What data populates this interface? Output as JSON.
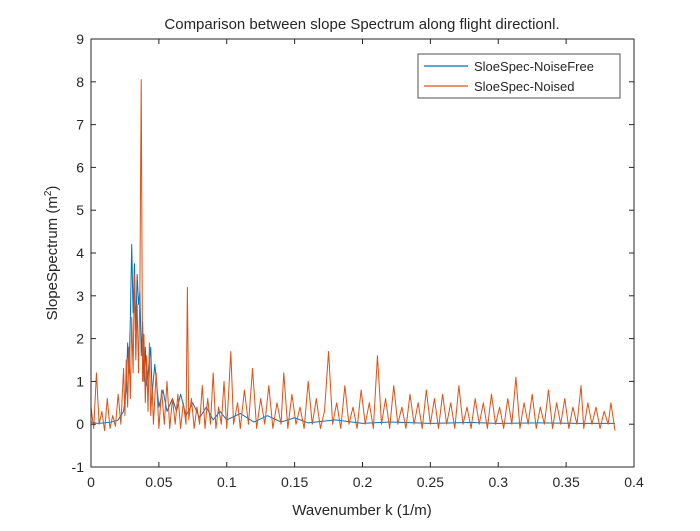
{
  "chart_data": {
    "type": "line",
    "title": "Comparison between slope Spectrum along flight directionl.",
    "xlabel": "Wavenumber k (1/m)",
    "ylabel_main": "SlopeSpectrum (m",
    "ylabel_sup": "2",
    "ylabel_close": ")",
    "xlim": [
      0,
      0.4
    ],
    "ylim": [
      -1,
      9
    ],
    "xticks": [
      0,
      0.05,
      0.1,
      0.15,
      0.2,
      0.25,
      0.3,
      0.35,
      0.4
    ],
    "xtick_labels": [
      "0",
      "0.05",
      "0.1",
      "0.15",
      "0.2",
      "0.25",
      "0.3",
      "0.35",
      "0.4"
    ],
    "yticks": [
      -1,
      0,
      1,
      2,
      3,
      4,
      5,
      6,
      7,
      8,
      9
    ],
    "ytick_labels": [
      "-1",
      "0",
      "1",
      "2",
      "3",
      "4",
      "5",
      "6",
      "7",
      "8",
      "9"
    ],
    "grid": false,
    "legend_position": "top-right",
    "series": [
      {
        "name": "SloeSpec-NoiseFree",
        "color": "#0072BD",
        "points": [
          [
            0.0,
            0.05
          ],
          [
            0.005,
            0.02
          ],
          [
            0.01,
            0.03
          ],
          [
            0.015,
            0.05
          ],
          [
            0.02,
            0.1
          ],
          [
            0.024,
            0.3
          ],
          [
            0.026,
            0.8
          ],
          [
            0.027,
            1.9
          ],
          [
            0.028,
            1.2
          ],
          [
            0.029,
            2.5
          ],
          [
            0.03,
            4.2
          ],
          [
            0.031,
            2.6
          ],
          [
            0.032,
            3.75
          ],
          [
            0.033,
            2.2
          ],
          [
            0.034,
            3.5
          ],
          [
            0.035,
            2.8
          ],
          [
            0.036,
            3.1
          ],
          [
            0.037,
            1.6
          ],
          [
            0.038,
            2.4
          ],
          [
            0.039,
            1.0
          ],
          [
            0.04,
            1.8
          ],
          [
            0.041,
            0.9
          ],
          [
            0.042,
            1.2
          ],
          [
            0.044,
            1.8
          ],
          [
            0.045,
            0.7
          ],
          [
            0.047,
            1.4
          ],
          [
            0.05,
            0.4
          ],
          [
            0.053,
            0.8
          ],
          [
            0.056,
            0.3
          ],
          [
            0.06,
            0.6
          ],
          [
            0.063,
            0.3
          ],
          [
            0.066,
            0.7
          ],
          [
            0.07,
            0.2
          ],
          [
            0.075,
            0.5
          ],
          [
            0.08,
            0.15
          ],
          [
            0.085,
            0.4
          ],
          [
            0.09,
            0.1
          ],
          [
            0.095,
            0.3
          ],
          [
            0.1,
            0.1
          ],
          [
            0.11,
            0.25
          ],
          [
            0.12,
            0.05
          ],
          [
            0.13,
            0.2
          ],
          [
            0.14,
            0.05
          ],
          [
            0.15,
            0.15
          ],
          [
            0.16,
            0.03
          ],
          [
            0.18,
            0.1
          ],
          [
            0.2,
            0.02
          ],
          [
            0.22,
            0.05
          ],
          [
            0.25,
            0.02
          ],
          [
            0.28,
            0.04
          ],
          [
            0.3,
            0.02
          ],
          [
            0.33,
            0.03
          ],
          [
            0.36,
            0.02
          ],
          [
            0.386,
            0.02
          ]
        ]
      },
      {
        "name": "SloeSpec-Noised",
        "color": "#D95319",
        "points": [
          [
            0.0,
            0.4
          ],
          [
            0.002,
            -0.1
          ],
          [
            0.004,
            1.2
          ],
          [
            0.006,
            0.0
          ],
          [
            0.008,
            0.3
          ],
          [
            0.01,
            -0.15
          ],
          [
            0.012,
            0.6
          ],
          [
            0.014,
            -0.1
          ],
          [
            0.016,
            0.2
          ],
          [
            0.018,
            -0.05
          ],
          [
            0.02,
            0.7
          ],
          [
            0.022,
            0.0
          ],
          [
            0.024,
            1.3
          ],
          [
            0.025,
            0.2
          ],
          [
            0.026,
            1.5
          ],
          [
            0.027,
            0.4
          ],
          [
            0.028,
            1.8
          ],
          [
            0.029,
            0.6
          ],
          [
            0.03,
            2.5
          ],
          [
            0.031,
            1.2
          ],
          [
            0.032,
            3.5
          ],
          [
            0.033,
            1.5
          ],
          [
            0.034,
            2.8
          ],
          [
            0.035,
            1.2
          ],
          [
            0.036,
            3.1
          ],
          [
            0.037,
            8.05
          ],
          [
            0.038,
            1.0
          ],
          [
            0.039,
            2.1
          ],
          [
            0.04,
            0.5
          ],
          [
            0.041,
            1.6
          ],
          [
            0.042,
            0.3
          ],
          [
            0.043,
            1.9
          ],
          [
            0.044,
            0.2
          ],
          [
            0.045,
            0.9
          ],
          [
            0.046,
            0.0
          ],
          [
            0.048,
            1.2
          ],
          [
            0.05,
            -0.1
          ],
          [
            0.052,
            0.8
          ],
          [
            0.054,
            0.0
          ],
          [
            0.056,
            1.0
          ],
          [
            0.058,
            -0.1
          ],
          [
            0.06,
            0.6
          ],
          [
            0.062,
            0.0
          ],
          [
            0.064,
            0.7
          ],
          [
            0.066,
            -0.1
          ],
          [
            0.068,
            0.5
          ],
          [
            0.07,
            0.0
          ],
          [
            0.071,
            3.2
          ],
          [
            0.072,
            0.1
          ],
          [
            0.074,
            0.6
          ],
          [
            0.076,
            -0.1
          ],
          [
            0.078,
            0.4
          ],
          [
            0.08,
            0.0
          ],
          [
            0.082,
            0.9
          ],
          [
            0.084,
            -0.1
          ],
          [
            0.086,
            0.6
          ],
          [
            0.088,
            0.0
          ],
          [
            0.09,
            1.2
          ],
          [
            0.092,
            -0.1
          ],
          [
            0.094,
            0.4
          ],
          [
            0.096,
            0.0
          ],
          [
            0.098,
            1.0
          ],
          [
            0.1,
            -0.1
          ],
          [
            0.103,
            1.7
          ],
          [
            0.105,
            0.0
          ],
          [
            0.108,
            0.5
          ],
          [
            0.11,
            -0.1
          ],
          [
            0.113,
            0.8
          ],
          [
            0.116,
            0.0
          ],
          [
            0.119,
            1.3
          ],
          [
            0.122,
            -0.1
          ],
          [
            0.125,
            0.6
          ],
          [
            0.128,
            0.0
          ],
          [
            0.131,
            0.9
          ],
          [
            0.134,
            -0.1
          ],
          [
            0.137,
            0.5
          ],
          [
            0.14,
            0.0
          ],
          [
            0.142,
            1.2
          ],
          [
            0.145,
            -0.1
          ],
          [
            0.148,
            0.7
          ],
          [
            0.151,
            0.0
          ],
          [
            0.154,
            0.4
          ],
          [
            0.157,
            -0.1
          ],
          [
            0.16,
            1.0
          ],
          [
            0.163,
            0.0
          ],
          [
            0.166,
            0.6
          ],
          [
            0.169,
            -0.1
          ],
          [
            0.172,
            0.3
          ],
          [
            0.175,
            1.7
          ],
          [
            0.178,
            0.0
          ],
          [
            0.181,
            0.5
          ],
          [
            0.184,
            -0.1
          ],
          [
            0.187,
            0.9
          ],
          [
            0.19,
            0.0
          ],
          [
            0.193,
            0.4
          ],
          [
            0.196,
            -0.1
          ],
          [
            0.199,
            0.8
          ],
          [
            0.202,
            0.0
          ],
          [
            0.205,
            0.5
          ],
          [
            0.208,
            -0.1
          ],
          [
            0.211,
            1.6
          ],
          [
            0.214,
            0.0
          ],
          [
            0.217,
            0.6
          ],
          [
            0.22,
            -0.1
          ],
          [
            0.223,
            0.9
          ],
          [
            0.226,
            0.0
          ],
          [
            0.229,
            0.4
          ],
          [
            0.232,
            -0.1
          ],
          [
            0.235,
            0.7
          ],
          [
            0.238,
            0.0
          ],
          [
            0.241,
            0.5
          ],
          [
            0.244,
            -0.1
          ],
          [
            0.247,
            0.8
          ],
          [
            0.25,
            0.0
          ],
          [
            0.253,
            0.6
          ],
          [
            0.256,
            -0.1
          ],
          [
            0.259,
            0.7
          ],
          [
            0.262,
            0.0
          ],
          [
            0.265,
            0.5
          ],
          [
            0.268,
            -0.1
          ],
          [
            0.271,
            0.9
          ],
          [
            0.274,
            0.0
          ],
          [
            0.277,
            0.4
          ],
          [
            0.28,
            -0.1
          ],
          [
            0.283,
            0.6
          ],
          [
            0.286,
            0.0
          ],
          [
            0.289,
            0.5
          ],
          [
            0.292,
            -0.1
          ],
          [
            0.295,
            0.7
          ],
          [
            0.298,
            0.0
          ],
          [
            0.301,
            0.4
          ],
          [
            0.304,
            -0.1
          ],
          [
            0.307,
            0.6
          ],
          [
            0.31,
            0.0
          ],
          [
            0.313,
            1.1
          ],
          [
            0.316,
            -0.1
          ],
          [
            0.319,
            0.5
          ],
          [
            0.322,
            0.0
          ],
          [
            0.325,
            0.7
          ],
          [
            0.328,
            -0.1
          ],
          [
            0.331,
            0.4
          ],
          [
            0.334,
            0.0
          ],
          [
            0.337,
            0.8
          ],
          [
            0.34,
            -0.1
          ],
          [
            0.343,
            0.5
          ],
          [
            0.346,
            0.0
          ],
          [
            0.349,
            0.6
          ],
          [
            0.352,
            -0.1
          ],
          [
            0.355,
            0.4
          ],
          [
            0.358,
            0.0
          ],
          [
            0.361,
            0.9
          ],
          [
            0.363,
            -0.1
          ],
          [
            0.366,
            0.5
          ],
          [
            0.369,
            0.0
          ],
          [
            0.372,
            0.4
          ],
          [
            0.375,
            -0.1
          ],
          [
            0.378,
            0.3
          ],
          [
            0.381,
            0.0
          ],
          [
            0.383,
            0.5
          ],
          [
            0.386,
            -0.15
          ]
        ]
      }
    ]
  }
}
